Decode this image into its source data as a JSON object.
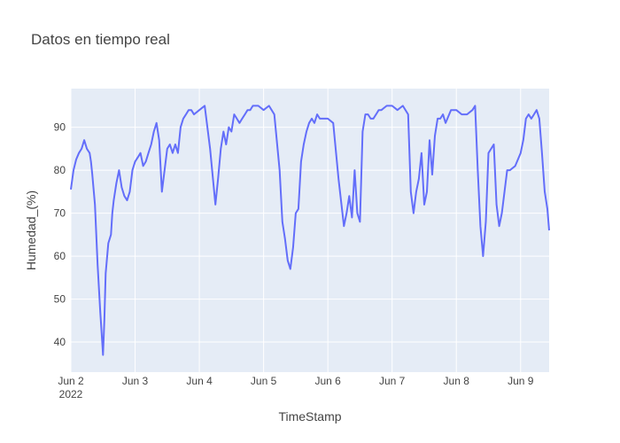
{
  "chart_data": {
    "type": "line",
    "title": "Datos en tiempo real",
    "xlabel": "TimeStamp",
    "ylabel": "Humedad_(%)",
    "x_range": [
      "2022-06-02 00:00",
      "2022-06-09 10:40"
    ],
    "ylim": [
      33,
      99
    ],
    "x_ticks": [
      {
        "date": "2022-06-02",
        "label": "Jun 2",
        "sublabel": "2022"
      },
      {
        "date": "2022-06-03",
        "label": "Jun 3",
        "sublabel": ""
      },
      {
        "date": "2022-06-04",
        "label": "Jun 4",
        "sublabel": ""
      },
      {
        "date": "2022-06-05",
        "label": "Jun 5",
        "sublabel": ""
      },
      {
        "date": "2022-06-06",
        "label": "Jun 6",
        "sublabel": ""
      },
      {
        "date": "2022-06-07",
        "label": "Jun 7",
        "sublabel": ""
      },
      {
        "date": "2022-06-08",
        "label": "Jun 8",
        "sublabel": ""
      },
      {
        "date": "2022-06-09",
        "label": "Jun 9",
        "sublabel": ""
      }
    ],
    "y_ticks": [
      40,
      50,
      60,
      70,
      80,
      90
    ],
    "grid": true,
    "colors": {
      "line": "#636efa",
      "plot_bg": "#e5ecf6",
      "grid": "#ffffff"
    },
    "series": [
      {
        "x": [
          "2022-06-02 00:00",
          "2022-06-02 01:00",
          "2022-06-02 02:00",
          "2022-06-02 03:00",
          "2022-06-02 04:00",
          "2022-06-02 05:00",
          "2022-06-02 06:00",
          "2022-06-02 07:00",
          "2022-06-02 07:30",
          "2022-06-02 08:00",
          "2022-06-02 09:00",
          "2022-06-02 10:00",
          "2022-06-02 11:00",
          "2022-06-02 11:30",
          "2022-06-02 12:00",
          "2022-06-02 12:30",
          "2022-06-02 13:00",
          "2022-06-02 14:00",
          "2022-06-02 15:00",
          "2022-06-02 15:30",
          "2022-06-02 16:00",
          "2022-06-02 17:00",
          "2022-06-02 18:00",
          "2022-06-02 19:00",
          "2022-06-02 20:00",
          "2022-06-02 21:00",
          "2022-06-02 22:00",
          "2022-06-02 23:00",
          "2022-06-03 00:00",
          "2022-06-03 01:00",
          "2022-06-03 02:00",
          "2022-06-03 03:00",
          "2022-06-03 04:00",
          "2022-06-03 05:00",
          "2022-06-03 06:00",
          "2022-06-03 07:00",
          "2022-06-03 08:00",
          "2022-06-03 09:00",
          "2022-06-03 10:00",
          "2022-06-03 11:00",
          "2022-06-03 12:00",
          "2022-06-03 13:00",
          "2022-06-03 14:00",
          "2022-06-03 15:00",
          "2022-06-03 16:00",
          "2022-06-03 17:00",
          "2022-06-03 18:00",
          "2022-06-03 19:00",
          "2022-06-03 20:00",
          "2022-06-03 21:00",
          "2022-06-03 22:00",
          "2022-06-04 00:00",
          "2022-06-04 02:00",
          "2022-06-04 04:00",
          "2022-06-04 06:00",
          "2022-06-04 07:00",
          "2022-06-04 08:00",
          "2022-06-04 09:00",
          "2022-06-04 10:00",
          "2022-06-04 11:00",
          "2022-06-04 12:00",
          "2022-06-04 13:00",
          "2022-06-04 14:00",
          "2022-06-04 15:00",
          "2022-06-04 16:00",
          "2022-06-04 17:00",
          "2022-06-04 18:00",
          "2022-06-04 19:00",
          "2022-06-04 20:00",
          "2022-06-04 22:00",
          "2022-06-05 00:00",
          "2022-06-05 02:00",
          "2022-06-05 04:00",
          "2022-06-05 06:00",
          "2022-06-05 07:00",
          "2022-06-05 08:00",
          "2022-06-05 09:00",
          "2022-06-05 10:00",
          "2022-06-05 11:00",
          "2022-06-05 12:00",
          "2022-06-05 13:00",
          "2022-06-05 14:00",
          "2022-06-05 15:00",
          "2022-06-05 16:00",
          "2022-06-05 17:00",
          "2022-06-05 18:00",
          "2022-06-05 19:00",
          "2022-06-05 20:00",
          "2022-06-05 21:00",
          "2022-06-05 22:00",
          "2022-06-06 00:00",
          "2022-06-06 02:00",
          "2022-06-06 04:00",
          "2022-06-06 06:00",
          "2022-06-06 07:00",
          "2022-06-06 08:00",
          "2022-06-06 09:00",
          "2022-06-06 10:00",
          "2022-06-06 11:00",
          "2022-06-06 12:00",
          "2022-06-06 13:00",
          "2022-06-06 14:00",
          "2022-06-06 15:00",
          "2022-06-06 16:00",
          "2022-06-06 17:00",
          "2022-06-06 18:00",
          "2022-06-06 19:00",
          "2022-06-06 20:00",
          "2022-06-06 22:00",
          "2022-06-07 00:00",
          "2022-06-07 02:00",
          "2022-06-07 04:00",
          "2022-06-07 06:00",
          "2022-06-07 07:00",
          "2022-06-07 08:00",
          "2022-06-07 09:00",
          "2022-06-07 10:00",
          "2022-06-07 11:00",
          "2022-06-07 12:00",
          "2022-06-07 13:00",
          "2022-06-07 14:00",
          "2022-06-07 15:00",
          "2022-06-07 16:00",
          "2022-06-07 17:00",
          "2022-06-07 18:00",
          "2022-06-07 19:00",
          "2022-06-07 20:00",
          "2022-06-07 22:00",
          "2022-06-08 00:00",
          "2022-06-08 02:00",
          "2022-06-08 04:00",
          "2022-06-08 06:00",
          "2022-06-08 07:00",
          "2022-06-08 08:00",
          "2022-06-08 09:00",
          "2022-06-08 10:00",
          "2022-06-08 11:00",
          "2022-06-08 12:00",
          "2022-06-08 13:00",
          "2022-06-08 14:00",
          "2022-06-08 15:00",
          "2022-06-08 16:00",
          "2022-06-08 17:00",
          "2022-06-08 18:00",
          "2022-06-08 19:00",
          "2022-06-08 20:00",
          "2022-06-08 22:00",
          "2022-06-09 00:00",
          "2022-06-09 01:00",
          "2022-06-09 02:00",
          "2022-06-09 03:00",
          "2022-06-09 04:00",
          "2022-06-09 05:00",
          "2022-06-09 06:00",
          "2022-06-09 07:00",
          "2022-06-09 08:00",
          "2022-06-09 09:00",
          "2022-06-09 10:00",
          "2022-06-09 10:40"
        ],
        "y": [
          75.5,
          80,
          82.5,
          84,
          85,
          87,
          85,
          84,
          82,
          79,
          72,
          58,
          47,
          42,
          37,
          45,
          56,
          63,
          65,
          70,
          73,
          77,
          80,
          76,
          74,
          73,
          75,
          80,
          82,
          83,
          84,
          81,
          82,
          84,
          86,
          89,
          91,
          87,
          75,
          80,
          85,
          86,
          84,
          86,
          84,
          90,
          92,
          93,
          94,
          94,
          93,
          94,
          95,
          85,
          72,
          78,
          85,
          89,
          86,
          90,
          89,
          93,
          92,
          91,
          92,
          93,
          94,
          94,
          95,
          95,
          94,
          95,
          93,
          80,
          68,
          64,
          59,
          57,
          62,
          70,
          71,
          82,
          86,
          89,
          91,
          92,
          91,
          93,
          92,
          92,
          92,
          91,
          78,
          67,
          70,
          74,
          69,
          80,
          70,
          68,
          89,
          93,
          93,
          92,
          92,
          93,
          94,
          94,
          95,
          95,
          94,
          95,
          93,
          75,
          70,
          75,
          78,
          84,
          72,
          75,
          87,
          79,
          88,
          92,
          92,
          93,
          91,
          94,
          94,
          93,
          93,
          94,
          95,
          80,
          67,
          60,
          68,
          84,
          85,
          86,
          72,
          67,
          70,
          75,
          80,
          80,
          81,
          84,
          87,
          92,
          93,
          92,
          93,
          94,
          92,
          84,
          75,
          71,
          66
        ]
      }
    ]
  }
}
